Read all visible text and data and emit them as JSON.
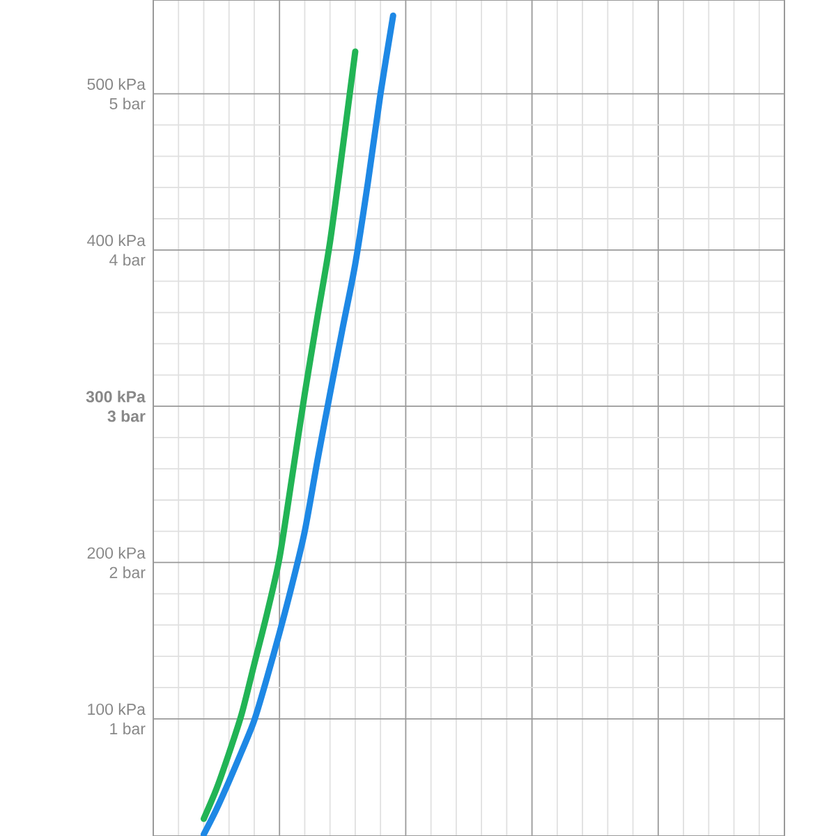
{
  "chart_data": {
    "type": "line",
    "categories": [
      null,
      null,
      null,
      null,
      null,
      null,
      null,
      null,
      null,
      null,
      null,
      null,
      null,
      null,
      null,
      null,
      null,
      null,
      null,
      null,
      null,
      null,
      null,
      null,
      null,
      null,
      null,
      null,
      null,
      null,
      null,
      null,
      null,
      null,
      null,
      null,
      null,
      null,
      null,
      null,
      null,
      null,
      null,
      null,
      null,
      null,
      null,
      null,
      null,
      null,
      null
    ],
    "series": [
      {
        "color": "#22b455",
        "values": [
          null,
          null,
          null,
          null,
          36,
          55,
          78,
          103,
          135,
          167,
          203,
          255,
          308,
          357,
          405,
          465,
          527,
          null,
          null,
          null,
          null,
          null,
          null,
          null,
          null,
          null,
          null,
          null,
          null,
          null,
          null,
          null,
          null,
          null,
          null,
          null,
          null,
          null,
          null,
          null,
          null,
          null,
          null,
          null,
          null,
          null,
          null,
          null,
          null,
          null,
          null
        ]
      },
      {
        "color": "#1e88e5",
        "values": [
          null,
          null,
          null,
          null,
          26,
          42,
          60,
          79,
          99,
          126,
          155,
          186,
          220,
          265,
          308,
          350,
          391,
          443,
          500,
          550,
          null,
          null,
          null,
          null,
          null,
          null,
          null,
          null,
          null,
          null,
          null,
          null,
          null,
          null,
          null,
          null,
          null,
          null,
          null,
          null,
          null,
          null,
          null,
          null,
          null,
          null,
          null,
          null,
          null,
          null,
          null
        ]
      }
    ],
    "ylim": [
      25,
      560
    ],
    "yticks": [
      {
        "value": 100,
        "label": "100 kPa"
      },
      {
        "value": 200,
        "label": "200 kPa"
      },
      {
        "value": 300,
        "label": "**300 kPa**"
      },
      {
        "value": 400,
        "label": "400 kPa"
      },
      {
        "value": 500,
        "label": "500 kPa"
      }
    ],
    "y2lim": [
      0.25,
      5.6
    ],
    "y2ticks": [
      {
        "value": 1,
        "label": "1 bar"
      },
      {
        "value": 2,
        "label": "2 bar"
      },
      {
        "value": 3,
        "label": "**3 bar**"
      },
      {
        "value": 4,
        "label": "4 bar"
      },
      {
        "value": 5,
        "label": "5 bar"
      }
    ],
    "grid": true,
    "marker": "none",
    "line_style": "solid"
  }
}
